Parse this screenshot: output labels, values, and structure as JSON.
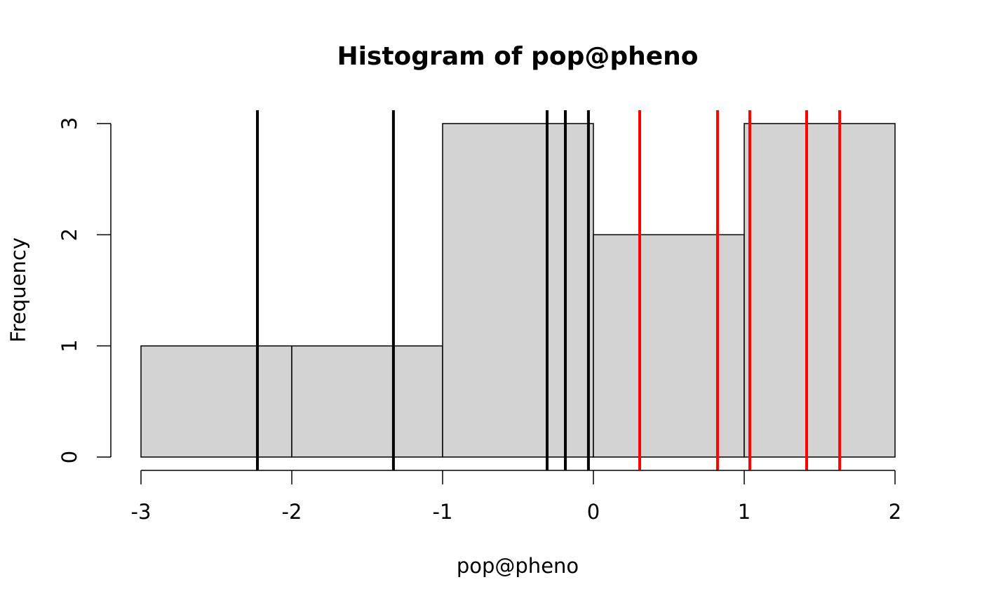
{
  "chart_data": {
    "type": "bar",
    "title": "Histogram of pop@pheno",
    "xlabel": "pop@pheno",
    "ylabel": "Frequency",
    "bins": [
      [
        -3,
        -2
      ],
      [
        -2,
        -1
      ],
      [
        -1,
        0
      ],
      [
        0,
        1
      ],
      [
        1,
        2
      ]
    ],
    "values": [
      1,
      1,
      3,
      2,
      3
    ],
    "xlim": [
      -3,
      2
    ],
    "ylim": [
      0,
      3
    ],
    "xticks": [
      "-3",
      "-2",
      "-1",
      "0",
      "1",
      "2"
    ],
    "yticks": [
      "0",
      "1",
      "2",
      "3"
    ],
    "grid": false,
    "bar_fill": "#d3d3d3",
    "vlines": [
      {
        "x": -2.228,
        "color": "#000000"
      },
      {
        "x": -1.326,
        "color": "#000000"
      },
      {
        "x": -0.307,
        "color": "#000000"
      },
      {
        "x": -0.186,
        "color": "#000000"
      },
      {
        "x": -0.033,
        "color": "#000000"
      },
      {
        "x": 0.307,
        "color": "#ff0000"
      },
      {
        "x": 0.823,
        "color": "#ff0000"
      },
      {
        "x": 1.037,
        "color": "#ff0000"
      },
      {
        "x": 1.414,
        "color": "#ff0000"
      },
      {
        "x": 1.633,
        "color": "#ff0000"
      }
    ]
  }
}
